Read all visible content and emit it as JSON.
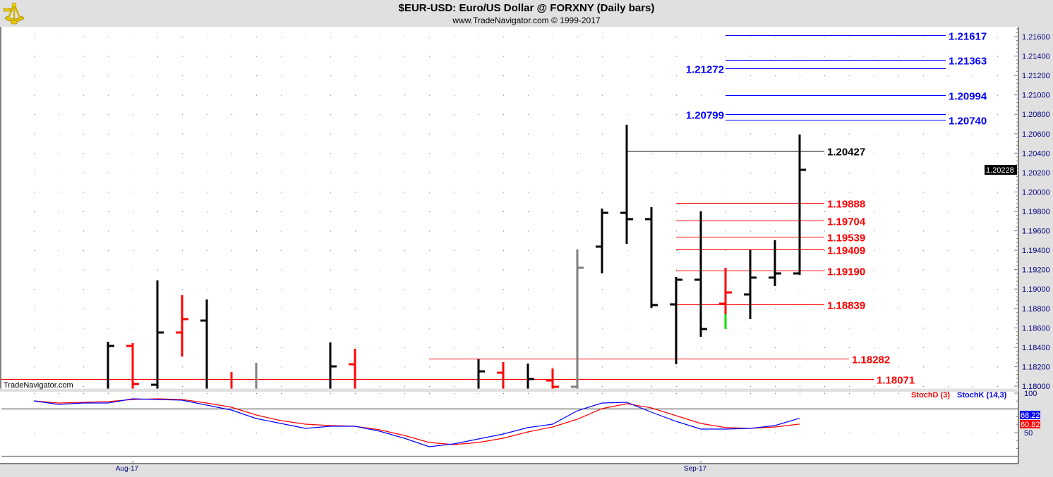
{
  "header": {
    "title": "$EUR-USD:  Euro/US Dollar @ FORXNY  (Daily bars)",
    "subtitle": "www.TradeNavigator.com © 1999-2017",
    "logo_icon": "sextant-icon",
    "watermark": "TradeNavigator.com"
  },
  "chart_data": [
    {
      "type": "ohlc",
      "title": "$EUR-USD:  Euro/US Dollar @ FORXNY  (Daily bars)",
      "ylim": [
        1.18,
        1.216
      ],
      "y_ticks": [
        "1.18000",
        "1.18200",
        "1.18400",
        "1.18600",
        "1.18800",
        "1.19000",
        "1.19200",
        "1.19400",
        "1.19600",
        "1.19800",
        "1.20000",
        "1.20200",
        "1.20400",
        "1.20600",
        "1.20800",
        "1.21000",
        "1.21200",
        "1.21400",
        "1.21600"
      ],
      "x_tick_labels": [
        {
          "label": "Aug-17",
          "bar": 4
        },
        {
          "label": "Sep-17",
          "bar": 27
        }
      ],
      "grid": "dotted",
      "current_price": "1.20228",
      "colors": {
        "black": "#000000",
        "red": "#ff0000",
        "gray": "#808080",
        "blue": "#0000ff",
        "green": "#00e000"
      },
      "bars": [
        null,
        null,
        null,
        {
          "o": 1.1795,
          "h": 1.18457,
          "l": 1.179,
          "c": 1.18414,
          "color": "#000000"
        },
        {
          "o": 1.18414,
          "h": 1.18443,
          "l": 1.179,
          "c": 1.18022,
          "color": "#ff0000"
        },
        {
          "o": 1.18014,
          "h": 1.19089,
          "l": 1.179,
          "c": 1.18552,
          "color": "#000000"
        },
        {
          "o": 1.18552,
          "h": 1.18936,
          "l": 1.18305,
          "c": 1.1869,
          "color": "#ff0000"
        },
        {
          "o": 1.18675,
          "h": 1.18893,
          "l": 1.179,
          "c": 1.1795,
          "color": "#000000"
        },
        {
          "o": 1.1795,
          "h": 1.18145,
          "l": 1.179,
          "c": 1.1795,
          "color": "#ff0000"
        },
        {
          "o": 1.1795,
          "h": 1.1824,
          "l": 1.179,
          "c": 1.1795,
          "color": "#808080"
        },
        null,
        null,
        {
          "o": 1.1795,
          "h": 1.1845,
          "l": 1.179,
          "c": 1.18203,
          "color": "#000000"
        },
        {
          "o": 1.18225,
          "h": 1.18385,
          "l": 1.179,
          "c": 1.1795,
          "color": "#ff0000"
        },
        null,
        null,
        null,
        null,
        {
          "o": 1.1795,
          "h": 1.18276,
          "l": 1.179,
          "c": 1.18152,
          "color": "#000000"
        },
        {
          "o": 1.18138,
          "h": 1.18247,
          "l": 1.179,
          "c": 1.1795,
          "color": "#ff0000"
        },
        {
          "o": 1.1795,
          "h": 1.18232,
          "l": 1.179,
          "c": 1.18073,
          "color": "#000000"
        },
        {
          "o": 1.18058,
          "h": 1.18182,
          "l": 1.179,
          "c": 1.17993,
          "color": "#ff0000"
        },
        {
          "o": 1.17993,
          "h": 1.19408,
          "l": 1.179,
          "c": 1.19219,
          "color": "#808080"
        },
        {
          "o": 1.19437,
          "h": 1.19829,
          "l": 1.19161,
          "c": 1.19785,
          "color": "#000000"
        },
        {
          "o": 1.19785,
          "h": 1.20693,
          "l": 1.19466,
          "c": 1.1972,
          "color": "#000000"
        },
        {
          "o": 1.1972,
          "h": 1.19844,
          "l": 1.18806,
          "c": 1.18835,
          "color": "#000000"
        },
        {
          "o": 1.18842,
          "h": 1.19125,
          "l": 1.18225,
          "c": 1.19096,
          "color": "#000000"
        },
        {
          "o": 1.19096,
          "h": 1.198,
          "l": 1.18508,
          "c": 1.18588,
          "color": "#000000"
        },
        {
          "o": 1.18849,
          "h": 1.19219,
          "l": 1.18588,
          "c": 1.18965,
          "color": "#ff0000",
          "low_segment": {
            "from": 1.1874,
            "color": "#00e000"
          }
        },
        {
          "o": 1.18944,
          "h": 1.19401,
          "l": 1.1869,
          "c": 1.19118,
          "color": "#000000"
        },
        {
          "o": 1.19118,
          "h": 1.19502,
          "l": 1.19031,
          "c": 1.19161,
          "color": "#000000"
        },
        {
          "o": 1.19161,
          "h": 1.20591,
          "l": 1.19147,
          "c": 1.20228,
          "color": "#000000"
        }
      ],
      "levels": [
        {
          "price": 1.21617,
          "label": "1.21617",
          "color": "#0000ff",
          "from_bar": 28,
          "label_side": "right"
        },
        {
          "price": 1.21363,
          "label": "1.21363",
          "color": "#0000ff",
          "from_bar": 28,
          "label_side": "right"
        },
        {
          "price": 1.21272,
          "label": "1.21272",
          "color": "#0000ff",
          "from_bar": 28,
          "label_side": "left"
        },
        {
          "price": 1.20994,
          "label": "1.20994",
          "color": "#0000ff",
          "from_bar": 28,
          "label_side": "right"
        },
        {
          "price": 1.20799,
          "label": "1.20799",
          "color": "#0000ff",
          "from_bar": 28,
          "label_side": "left"
        },
        {
          "price": 1.2074,
          "label": "1.20740",
          "color": "#0000ff",
          "from_bar": 28,
          "label_side": "right"
        },
        {
          "price": 1.20427,
          "label": "1.20427",
          "color": "#000000",
          "from_bar": 24,
          "label_side": "right"
        },
        {
          "price": 1.19888,
          "label": "1.19888",
          "color": "#ff0000",
          "from_bar": 26,
          "label_side": "right"
        },
        {
          "price": 1.19704,
          "label": "1.19704",
          "color": "#ff0000",
          "from_bar": 26,
          "label_side": "right"
        },
        {
          "price": 1.19539,
          "label": "1.19539",
          "color": "#ff0000",
          "from_bar": 26,
          "label_side": "right"
        },
        {
          "price": 1.19409,
          "label": "1.19409",
          "color": "#ff0000",
          "from_bar": 26,
          "label_side": "right"
        },
        {
          "price": 1.1919,
          "label": "1.19190",
          "color": "#ff0000",
          "from_bar": 26,
          "label_side": "right"
        },
        {
          "price": 1.18839,
          "label": "1.18839",
          "color": "#ff0000",
          "from_bar": 26,
          "label_side": "right"
        },
        {
          "price": 1.18282,
          "label": "1.18282",
          "color": "#ff0000",
          "from_bar": 16,
          "label_side": "right"
        },
        {
          "price": 1.18071,
          "label": "1.18071",
          "color": "#ff0000",
          "from_bar": null,
          "label_side": "right"
        }
      ]
    },
    {
      "type": "line",
      "ylim": [
        0,
        100
      ],
      "y_ticks": [
        "100",
        "50"
      ],
      "reference_lines": [
        80,
        20
      ],
      "series": [
        {
          "name": "StochD (3)",
          "color": "#ff0000",
          "last": "60.82",
          "values": [
            90.2,
            87.5,
            88.4,
            89.3,
            92.0,
            92.9,
            92.0,
            87.5,
            82.1,
            72.3,
            65.2,
            60.7,
            58.9,
            58.0,
            53.6,
            46.4,
            37.5,
            34.8,
            37.5,
            42.9,
            50.9,
            57.1,
            67.0,
            80.4,
            86.6,
            81.3,
            71.4,
            61.6,
            56.3,
            55.4,
            57.1,
            60.82
          ]
        },
        {
          "name": "StochK (14,3)",
          "color": "#0000ff",
          "last": "68.22",
          "values": [
            90.2,
            85.7,
            87.5,
            87.5,
            92.9,
            92.0,
            91.1,
            84.8,
            78.6,
            67.9,
            61.6,
            55.4,
            58.0,
            58.0,
            51.8,
            42.9,
            32.1,
            35.7,
            42.0,
            48.2,
            56.3,
            60.7,
            77.7,
            87.5,
            88.4,
            75.9,
            64.3,
            54.5,
            54.5,
            55.4,
            58.9,
            68.22
          ]
        }
      ]
    }
  ]
}
